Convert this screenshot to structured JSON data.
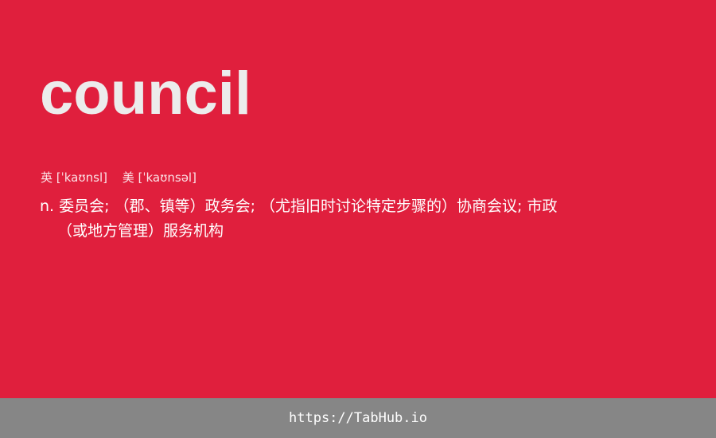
{
  "entry": {
    "word": "council",
    "phonetic_uk": "英 [ˈkaʊnsl]",
    "phonetic_us": "美 [ˈkaʊnsəl]",
    "definition_line1": "n. 委员会; （郡、镇等）政务会; （尤指旧时讨论特定步骤的）协商会议; 市政",
    "definition_line2": "（或地方管理）服务机构"
  },
  "footer": {
    "link": "https://TabHub.io"
  },
  "colors": {
    "background": "#e01f3d",
    "footer_background": "#868686",
    "word_color": "#ececec",
    "text_color": "#ffffff"
  }
}
